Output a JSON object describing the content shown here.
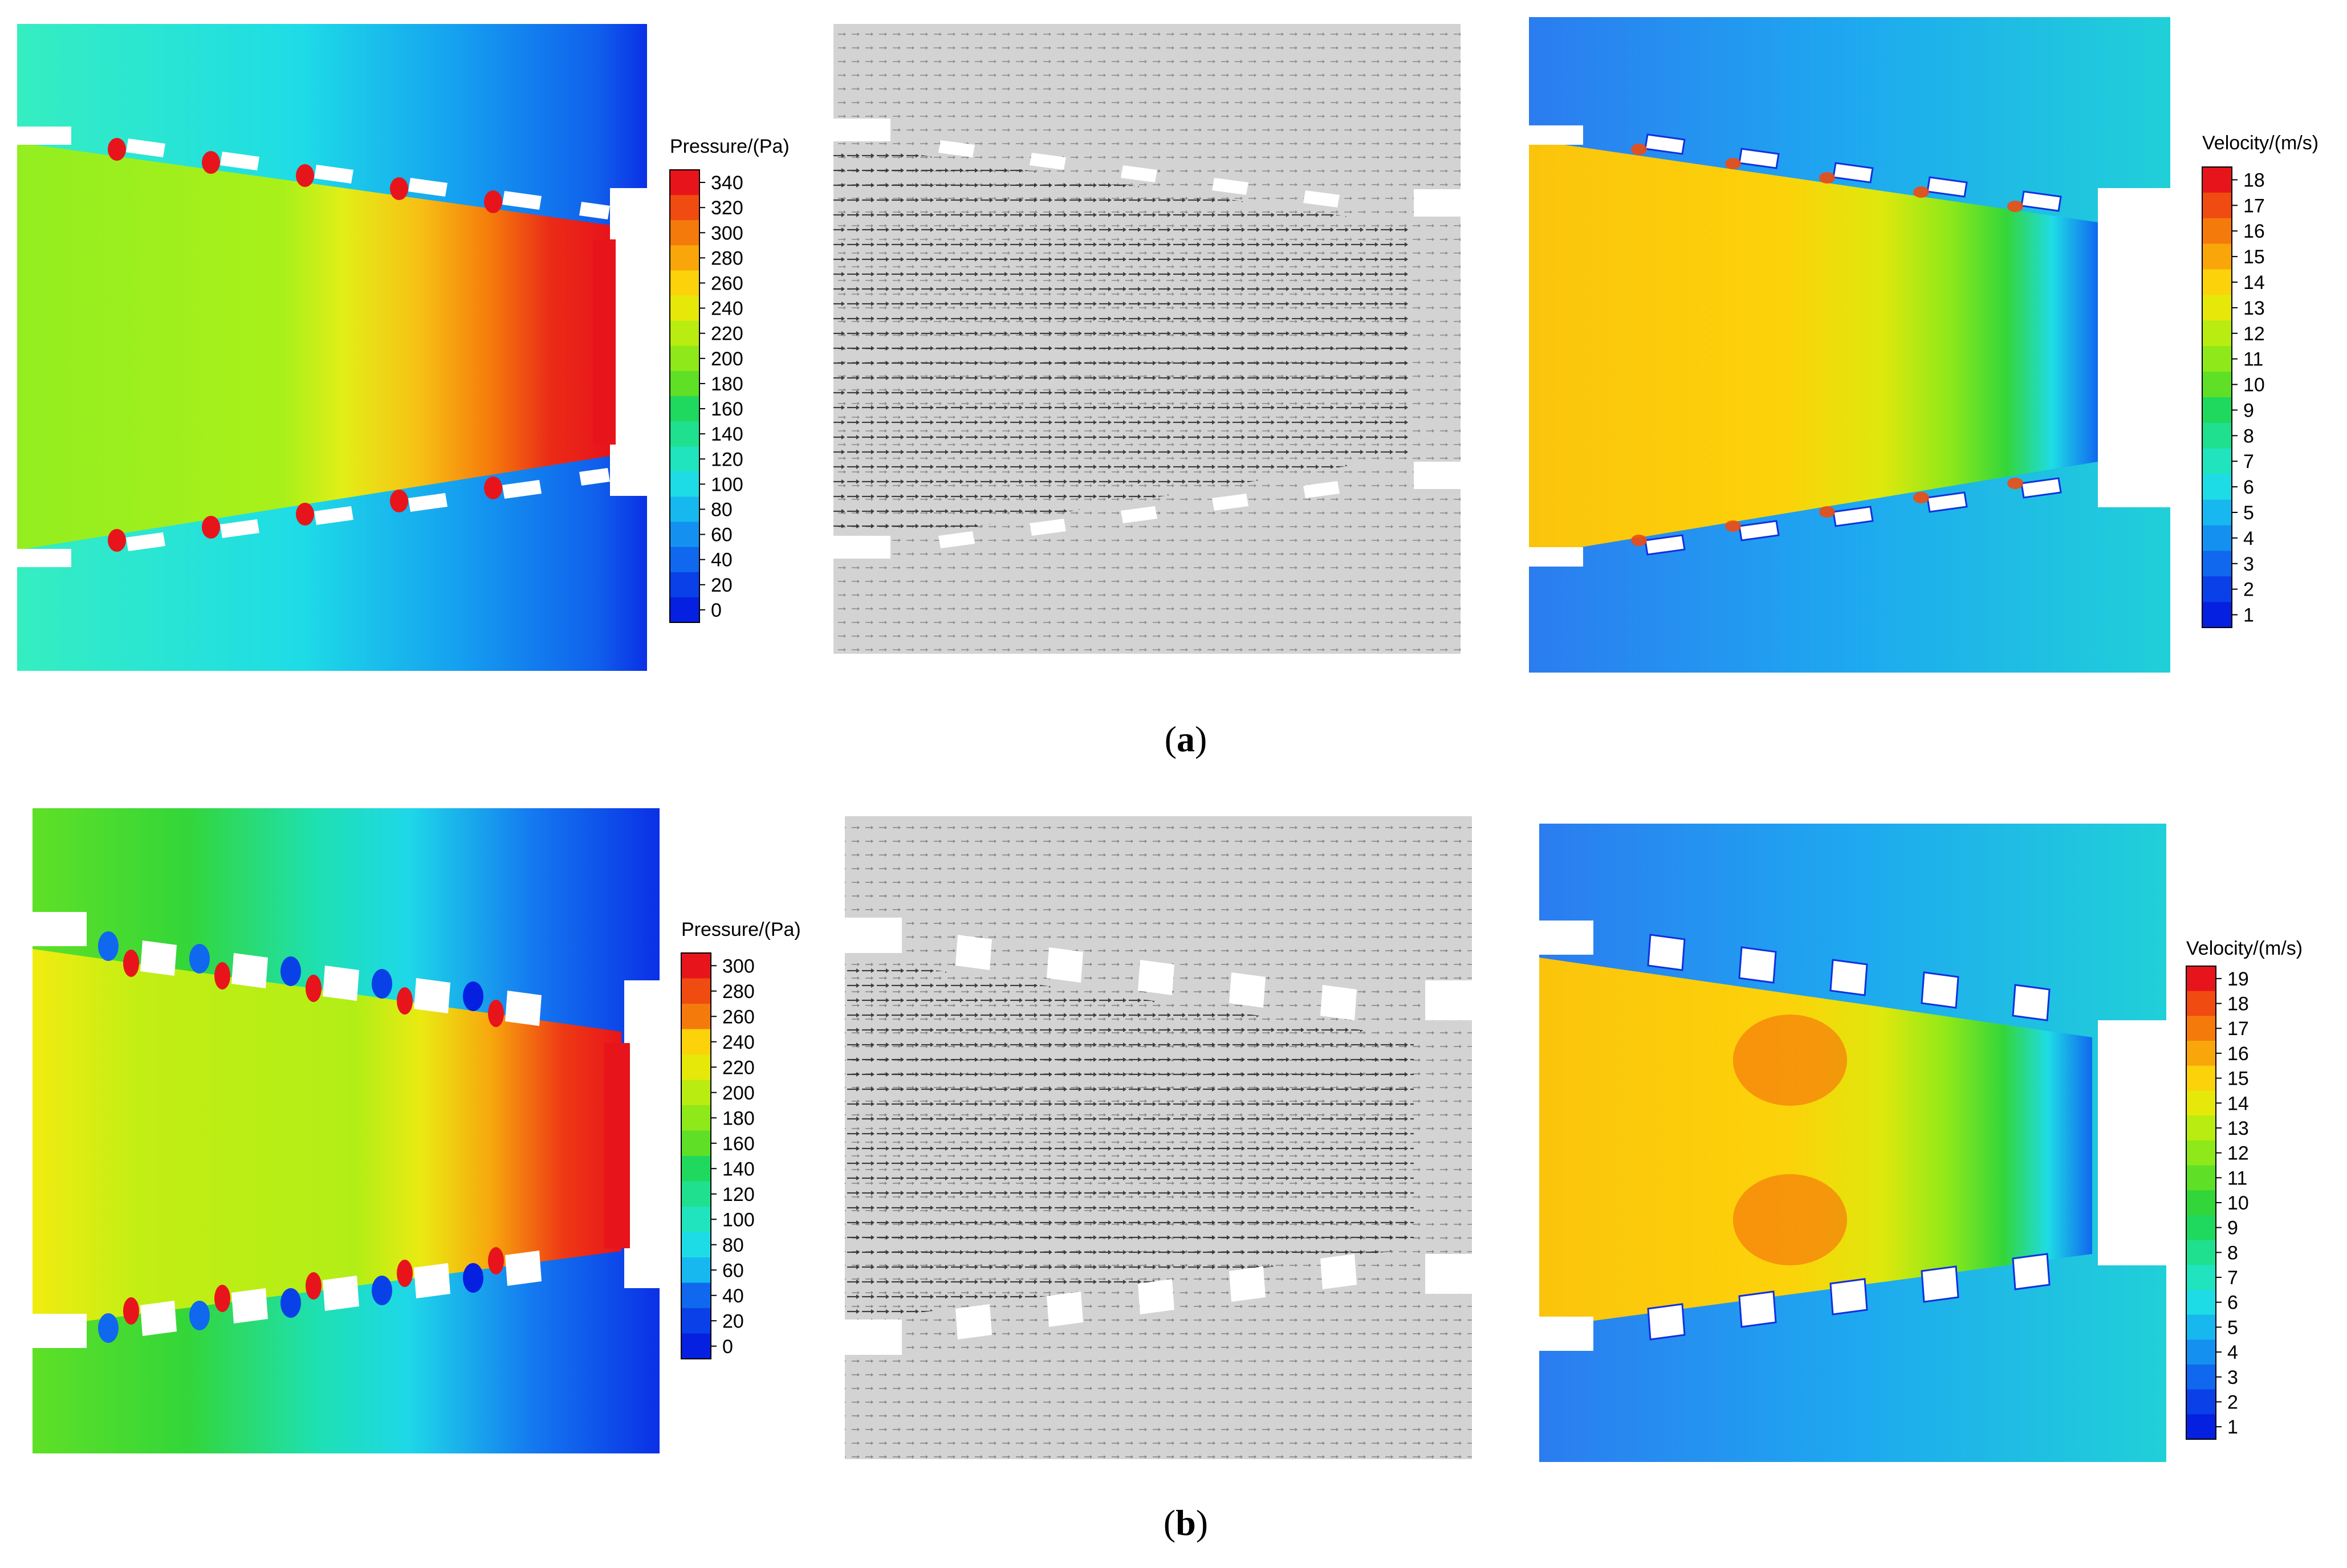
{
  "rows": [
    {
      "caption_letter": "a",
      "pressure_legend": {
        "title": "Pressure/(Pa)",
        "labels": [
          "340",
          "320",
          "300",
          "280",
          "260",
          "240",
          "220",
          "200",
          "180",
          "160",
          "140",
          "120",
          "100",
          "80",
          "60",
          "40",
          "20",
          "0"
        ]
      },
      "velocity_legend": {
        "title": "Velocity/(m/s)",
        "labels": [
          "18",
          "17",
          "16",
          "15",
          "14",
          "13",
          "12",
          "11",
          "10",
          "9",
          "8",
          "7",
          "6",
          "5",
          "4",
          "3",
          "2",
          "1"
        ]
      }
    },
    {
      "caption_letter": "b",
      "pressure_legend": {
        "title": "Pressure/(Pa)",
        "labels": [
          "300",
          "280",
          "260",
          "240",
          "220",
          "200",
          "180",
          "160",
          "140",
          "120",
          "100",
          "80",
          "60",
          "40",
          "20",
          "0"
        ]
      },
      "velocity_legend": {
        "title": "Velocity/(m/s)",
        "labels": [
          "19",
          "18",
          "17",
          "16",
          "15",
          "14",
          "13",
          "12",
          "11",
          "10",
          "9",
          "8",
          "7",
          "6",
          "5",
          "4",
          "3",
          "2",
          "1"
        ]
      }
    }
  ],
  "colors": {
    "scale": [
      "#e8141b",
      "#f04b10",
      "#f57a0c",
      "#f9a60a",
      "#fcd20a",
      "#e6e80a",
      "#b9ec10",
      "#8ee81a",
      "#5fe026",
      "#33d63a",
      "#1fd85e",
      "#1ee08f",
      "#1fe4bd",
      "#1edce6",
      "#17b8f0",
      "#1491f0",
      "#1068ee",
      "#0a40e8",
      "#0520e0"
    ],
    "pressure_field": [
      "#30eec0",
      "#9af21a",
      "#e6ef18",
      "#f9a214",
      "#e8141b"
    ],
    "vector_background": "#d3d3d3",
    "vector_arrow": "#111111"
  }
}
